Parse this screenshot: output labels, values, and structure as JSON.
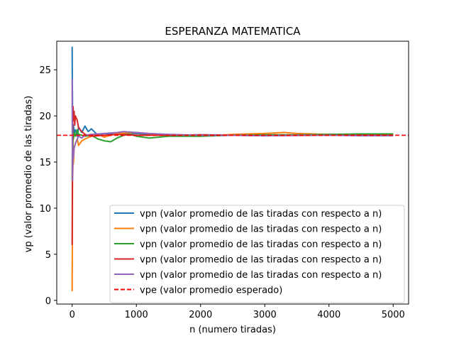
{
  "chart_data": {
    "type": "line",
    "title": "ESPERANZA MATEMATICA",
    "xlabel": "n (numero tiradas)",
    "ylabel": "vp (valor promedio de las tiradas)",
    "xlim": [
      -240,
      5240
    ],
    "ylim": [
      -0.4,
      28.1
    ],
    "xticks": [
      0,
      1000,
      2000,
      3000,
      4000,
      5000
    ],
    "yticks": [
      0,
      5,
      10,
      15,
      20,
      25
    ],
    "grid": false,
    "legend_position": "lower-right",
    "series": [
      {
        "name": "vpn (valor promedio de las tiradas con respecto a n)",
        "color": "#1f77b4",
        "points": [
          [
            0,
            27.5
          ],
          [
            2,
            24
          ],
          [
            5,
            22
          ],
          [
            8,
            17
          ],
          [
            10,
            19
          ],
          [
            15,
            17.5
          ],
          [
            20,
            19
          ],
          [
            30,
            18
          ],
          [
            50,
            18.5
          ],
          [
            80,
            17.8
          ],
          [
            100,
            18.8
          ],
          [
            150,
            18.2
          ],
          [
            200,
            18.9
          ],
          [
            250,
            18.3
          ],
          [
            300,
            18.6
          ],
          [
            400,
            17.9
          ],
          [
            500,
            18.1
          ],
          [
            700,
            18.0
          ],
          [
            1000,
            18.1
          ],
          [
            1500,
            17.9
          ],
          [
            2000,
            17.95
          ],
          [
            3000,
            17.9
          ],
          [
            4000,
            17.95
          ],
          [
            5000,
            17.9
          ]
        ]
      },
      {
        "name": "vpn (valor promedio de las tiradas con respecto a n)",
        "color": "#ff7f0e",
        "points": [
          [
            0,
            1.0
          ],
          [
            2,
            5
          ],
          [
            4,
            10
          ],
          [
            6,
            13
          ],
          [
            10,
            14
          ],
          [
            15,
            15.5
          ],
          [
            20,
            14.8
          ],
          [
            30,
            16.5
          ],
          [
            50,
            17
          ],
          [
            80,
            17.5
          ],
          [
            100,
            16.8
          ],
          [
            150,
            17.3
          ],
          [
            200,
            17.5
          ],
          [
            300,
            17.8
          ],
          [
            400,
            18.0
          ],
          [
            500,
            17.7
          ],
          [
            700,
            18.1
          ],
          [
            1000,
            18.2
          ],
          [
            1500,
            17.9
          ],
          [
            2000,
            17.8
          ],
          [
            2500,
            18.0
          ],
          [
            3000,
            18.1
          ],
          [
            3300,
            18.2
          ],
          [
            3500,
            18.1
          ],
          [
            4000,
            18.0
          ],
          [
            4500,
            18.0
          ],
          [
            5000,
            18.0
          ]
        ]
      },
      {
        "name": "vpn (valor promedio de las tiradas con respecto a n)",
        "color": "#2ca02c",
        "points": [
          [
            0,
            13
          ],
          [
            2,
            16
          ],
          [
            4,
            14
          ],
          [
            6,
            17
          ],
          [
            10,
            16
          ],
          [
            15,
            18
          ],
          [
            20,
            17.5
          ],
          [
            30,
            18.2
          ],
          [
            50,
            17.8
          ],
          [
            80,
            18.5
          ],
          [
            100,
            18.0
          ],
          [
            200,
            17.8
          ],
          [
            300,
            17.9
          ],
          [
            400,
            17.5
          ],
          [
            500,
            17.3
          ],
          [
            600,
            17.2
          ],
          [
            700,
            17.6
          ],
          [
            800,
            17.9
          ],
          [
            900,
            18.0
          ],
          [
            1000,
            17.8
          ],
          [
            1200,
            17.6
          ],
          [
            1500,
            17.8
          ],
          [
            2000,
            17.8
          ],
          [
            2500,
            17.9
          ],
          [
            3000,
            17.95
          ],
          [
            3500,
            17.95
          ],
          [
            4000,
            18.0
          ],
          [
            4500,
            18.05
          ],
          [
            5000,
            18.05
          ]
        ]
      },
      {
        "name": "vpn (valor promedio de las tiradas con respecto a n)",
        "color": "#d62728",
        "points": [
          [
            0,
            6
          ],
          [
            2,
            10
          ],
          [
            4,
            14
          ],
          [
            6,
            17
          ],
          [
            8,
            19
          ],
          [
            10,
            20
          ],
          [
            15,
            21
          ],
          [
            20,
            19.5
          ],
          [
            30,
            20.5
          ],
          [
            40,
            19
          ],
          [
            50,
            20
          ],
          [
            80,
            19.5
          ],
          [
            100,
            18.7
          ],
          [
            150,
            18.3
          ],
          [
            200,
            18.0
          ],
          [
            300,
            17.8
          ],
          [
            500,
            17.9
          ],
          [
            700,
            18.0
          ],
          [
            1000,
            17.9
          ],
          [
            1500,
            17.9
          ],
          [
            2000,
            17.95
          ],
          [
            3000,
            17.85
          ],
          [
            4000,
            17.9
          ],
          [
            5000,
            17.9
          ]
        ]
      },
      {
        "name": "vpn (valor promedio de las tiradas con respecto a n)",
        "color": "#9467bd",
        "points": [
          [
            0,
            24
          ],
          [
            2,
            18
          ],
          [
            4,
            15
          ],
          [
            6,
            13
          ],
          [
            8,
            14
          ],
          [
            10,
            15
          ],
          [
            15,
            16
          ],
          [
            20,
            15.5
          ],
          [
            30,
            16.5
          ],
          [
            50,
            17
          ],
          [
            80,
            17.5
          ],
          [
            100,
            17.8
          ],
          [
            150,
            17.6
          ],
          [
            200,
            17.9
          ],
          [
            300,
            18.0
          ],
          [
            500,
            18.1
          ],
          [
            700,
            18.2
          ],
          [
            800,
            18.3
          ],
          [
            1000,
            18.2
          ],
          [
            1200,
            18.1
          ],
          [
            1500,
            18.0
          ],
          [
            2000,
            17.9
          ],
          [
            2500,
            17.9
          ],
          [
            3000,
            17.85
          ],
          [
            3500,
            17.9
          ],
          [
            4000,
            17.9
          ],
          [
            4500,
            17.85
          ],
          [
            5000,
            17.85
          ]
        ]
      },
      {
        "name": "vpe (valor promedio esperado)",
        "color": "#ff0000",
        "dashed": true,
        "hline": 17.9
      }
    ]
  }
}
